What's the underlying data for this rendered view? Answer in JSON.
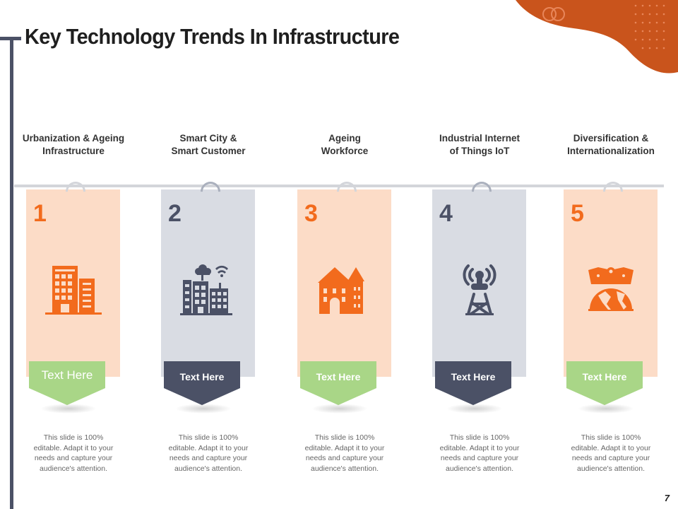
{
  "title": "Key Technology Trends In Infrastructure",
  "page_number": "7",
  "colors": {
    "orange": "#f26b1d",
    "orange_light": "#fcdcc7",
    "slate": "#4b5166",
    "slate_light": "#d9dce3",
    "green": "#a9d687"
  },
  "columns": [
    {
      "heading": [
        "Urbanization & Ageing",
        "Infrastructure"
      ],
      "number": "1",
      "icon": "building-icon",
      "tag": "Text Here",
      "desc": [
        "This slide is 100%",
        "editable. Adapt it to your",
        "needs and capture your",
        "audience's attention."
      ]
    },
    {
      "heading": [
        "Smart City &",
        "Smart Customer"
      ],
      "number": "2",
      "icon": "smart-city-icon",
      "tag": "Text Here",
      "desc": [
        "This slide is 100%",
        "editable. Adapt it to your",
        "needs and capture your",
        "audience's attention."
      ]
    },
    {
      "heading": [
        "Ageing",
        "Workforce"
      ],
      "number": "3",
      "icon": "old-houses-icon",
      "tag": "Text Here",
      "desc": [
        "This slide is 100%",
        "editable. Adapt it to your",
        "needs and capture your",
        "audience's attention."
      ]
    },
    {
      "heading": [
        "Industrial Internet",
        "of Things IoT"
      ],
      "number": "4",
      "icon": "radio-tower-icon",
      "tag": "Text Here",
      "desc": [
        "This slide is 100%",
        "editable. Adapt it to your",
        "needs and capture your",
        "audience's attention."
      ]
    },
    {
      "heading": [
        "Diversification &",
        "Internationalization"
      ],
      "number": "5",
      "icon": "globe-network-icon",
      "tag": "Text Here",
      "desc": [
        "This slide is 100%",
        "editable. Adapt it to your",
        "needs and capture your",
        "audience's attention."
      ]
    }
  ]
}
